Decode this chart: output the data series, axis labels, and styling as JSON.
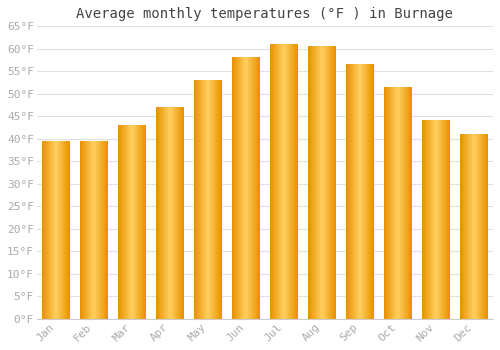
{
  "title": "Average monthly temperatures (°F ) in Burnage",
  "months": [
    "Jan",
    "Feb",
    "Mar",
    "Apr",
    "May",
    "Jun",
    "Jul",
    "Aug",
    "Sep",
    "Oct",
    "Nov",
    "Dec"
  ],
  "values": [
    39.5,
    39.5,
    43.0,
    47.0,
    53.0,
    58.0,
    61.0,
    60.5,
    56.5,
    51.5,
    44.0,
    41.0
  ],
  "bar_color_center": "#FFD060",
  "bar_color_edge": "#E89000",
  "background_color": "#FFFFFF",
  "grid_color": "#E0E0E0",
  "tick_label_color": "#AAAAAA",
  "title_color": "#444444",
  "ylim": [
    0,
    65
  ],
  "yticks": [
    0,
    5,
    10,
    15,
    20,
    25,
    30,
    35,
    40,
    45,
    50,
    55,
    60,
    65
  ],
  "ytick_labels": [
    "0°F",
    "5°F",
    "10°F",
    "15°F",
    "20°F",
    "25°F",
    "30°F",
    "35°F",
    "40°F",
    "45°F",
    "50°F",
    "55°F",
    "60°F",
    "65°F"
  ],
  "title_fontsize": 10,
  "tick_fontsize": 8,
  "figsize": [
    5.0,
    3.5
  ],
  "dpi": 100,
  "bar_width": 0.72
}
